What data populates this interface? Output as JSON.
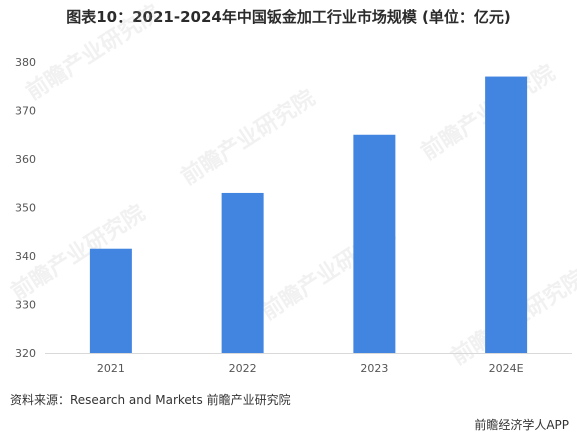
{
  "title": "图表10：2021-2024年中国钣金加工行业市场规模 (单位：亿元)",
  "source": "资料来源：Research and Markets 前瞻产业研究院",
  "brand": "前瞻经济学人APP",
  "watermark": "前瞻产业研究院",
  "colors": {
    "bar": "#4285e0",
    "axis": "#d9d9d9",
    "tick_text": "#555555"
  },
  "chart_data": {
    "type": "bar",
    "title": "图表10：2021-2024年中国钣金加工行业市场规模 (单位：亿元)",
    "categories": [
      "2021",
      "2022",
      "2023",
      "2024E"
    ],
    "values": [
      341.5,
      353,
      365,
      377
    ],
    "ylim": [
      320,
      380
    ],
    "yticks": [
      320,
      330,
      340,
      350,
      360,
      370,
      380
    ],
    "xlabel": "",
    "ylabel": "",
    "grid": false
  }
}
